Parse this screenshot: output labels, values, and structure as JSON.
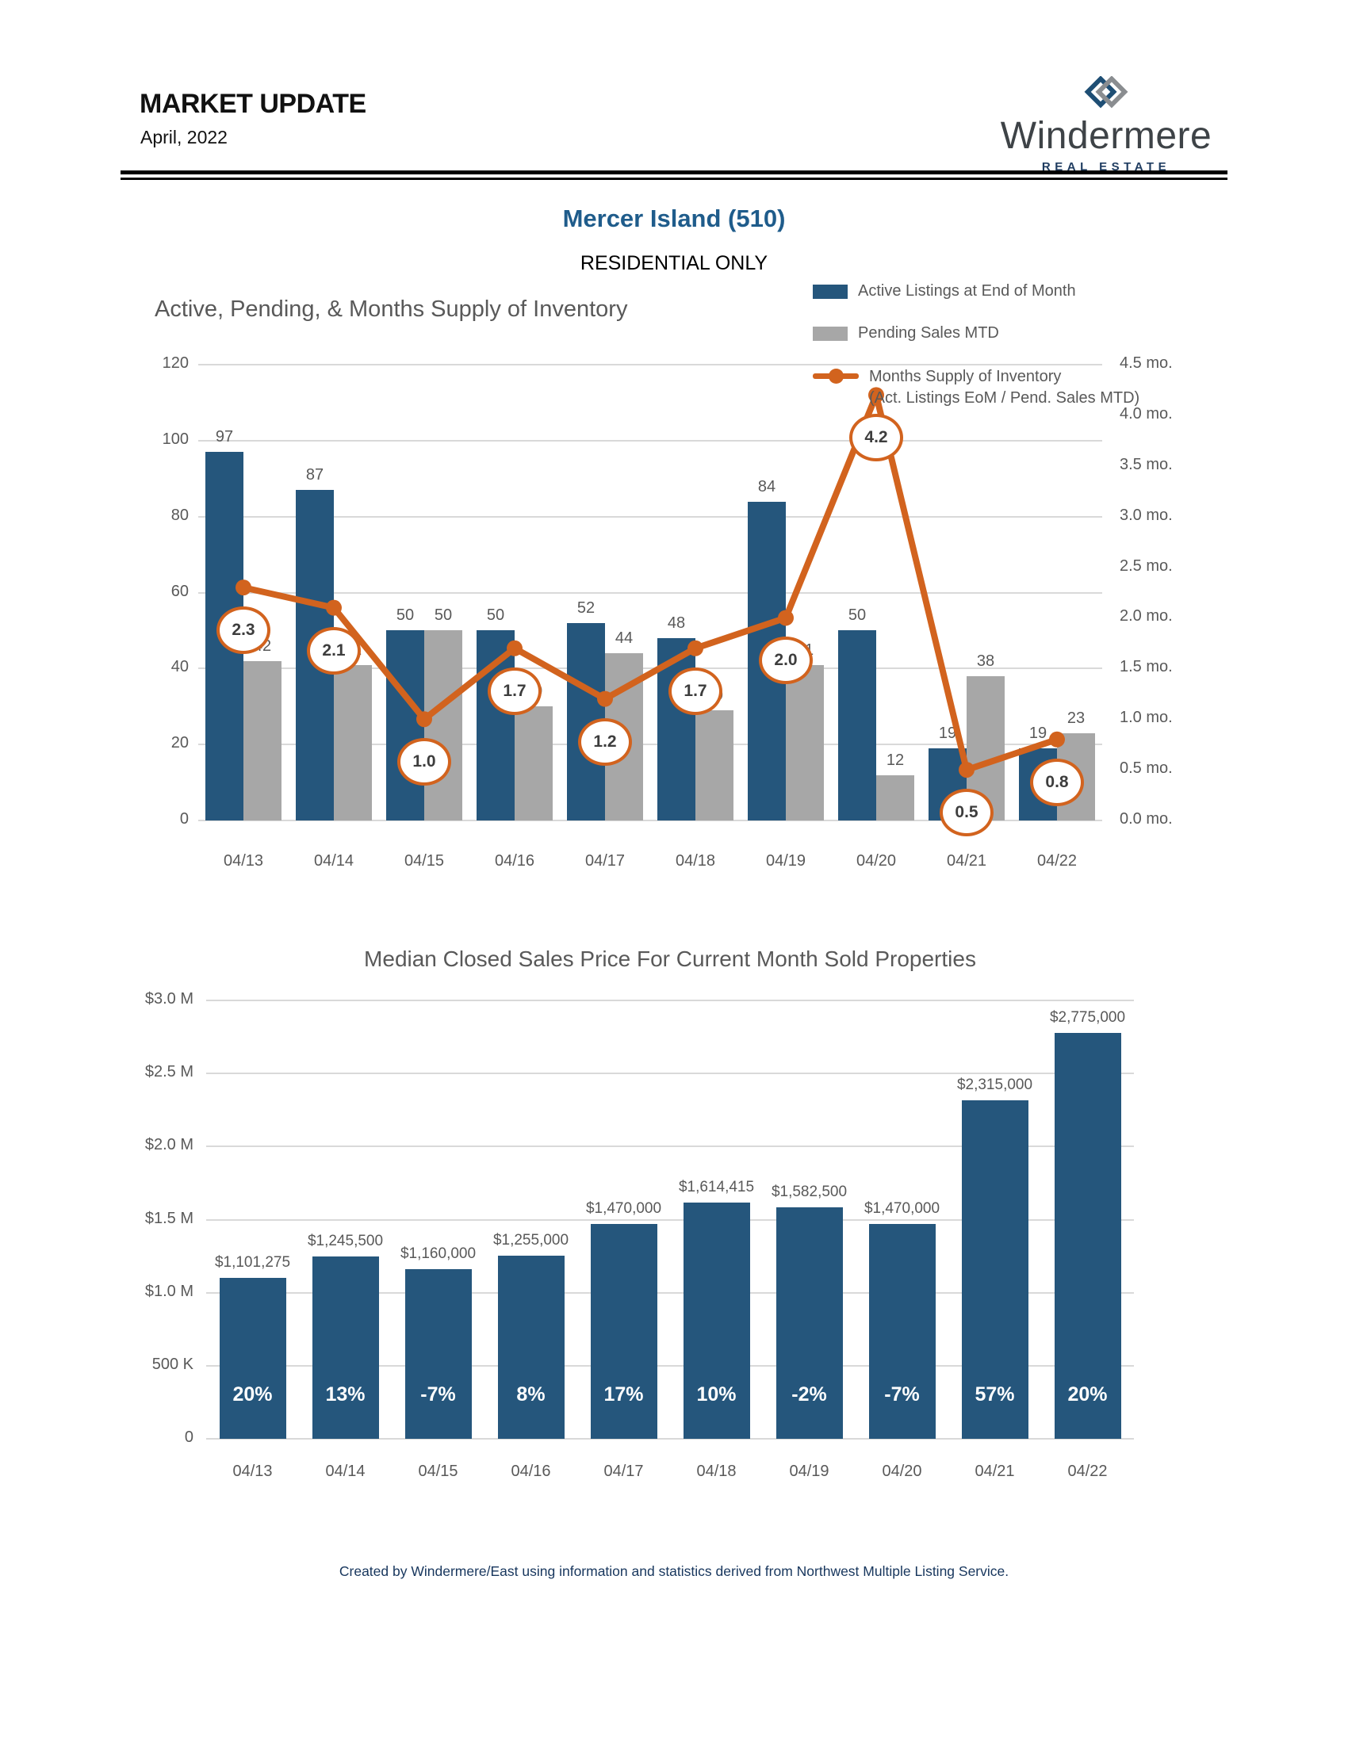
{
  "header": {
    "title": "MARKET UPDATE",
    "subtitle": "April, 2022",
    "logo": {
      "brand": "Windermere",
      "tagline": "REAL ESTATE",
      "icon": "windermere-w-diamond-icon"
    }
  },
  "page": {
    "region_title": "Mercer Island (510)",
    "segment_label": "RESIDENTIAL ONLY",
    "footer": "Created by Windermere/East using information and statistics derived from Northwest Multiple Listing Service."
  },
  "colors": {
    "bar_blue": "#25567C",
    "bar_gray": "#A7A7A7",
    "line_orange": "#D2631E",
    "gridline": "#D9D9D9",
    "axis_text": "#595959",
    "title_blue": "#1F5C8B",
    "footer_navy": "#17365D",
    "logo_navy": "#1E4E74",
    "logo_gray": "#8A8D90"
  },
  "chart_data": [
    {
      "type": "bar",
      "subtype": "combo bar+line, dual axis",
      "title": "Active, Pending, & Months Supply of Inventory",
      "categories": [
        "04/13",
        "04/14",
        "04/15",
        "04/16",
        "04/17",
        "04/18",
        "04/19",
        "04/20",
        "04/21",
        "04/22"
      ],
      "series": [
        {
          "name": "Active Listings at End of Month",
          "type": "bar",
          "color": "#25567C",
          "values": [
            97,
            87,
            50,
            50,
            52,
            48,
            84,
            50,
            19,
            19
          ]
        },
        {
          "name": "Pending Sales MTD",
          "type": "bar",
          "color": "#A7A7A7",
          "values": [
            42,
            41,
            50,
            30,
            44,
            29,
            41,
            12,
            38,
            23
          ]
        },
        {
          "name": "Months Supply of Inventory (Act. Listings EoM / Pend. Sales MTD)",
          "name_line1": "Months Supply of Inventory",
          "name_line2": "(Act. Listings EoM / Pend. Sales MTD)",
          "type": "line",
          "axis": "right",
          "color": "#D2631E",
          "values": [
            2.3,
            2.1,
            1.0,
            1.7,
            1.2,
            1.7,
            2.0,
            4.2,
            0.5,
            0.8
          ],
          "point_labels": [
            "2.3",
            "2.1",
            "1.0",
            "1.7",
            "1.2",
            "1.7",
            "2.0",
            "4.2",
            "0.5",
            "0.8"
          ]
        }
      ],
      "left_axis": {
        "min": 0,
        "max": 120,
        "step": 20,
        "ticks": [
          "120",
          "100",
          "80",
          "60",
          "40",
          "20",
          "0"
        ]
      },
      "right_axis": {
        "min": 0,
        "max": 4.5,
        "step": 0.5,
        "ticks": [
          "4.5 mo.",
          "4.0 mo.",
          "3.5 mo.",
          "3.0 mo.",
          "2.5 mo.",
          "2.0 mo.",
          "1.5 mo.",
          "1.0 mo.",
          "0.5 mo.",
          "0.0 mo."
        ]
      },
      "legend_position": "top-right",
      "grid": true
    },
    {
      "type": "bar",
      "title": "Median Closed Sales Price For Current Month Sold Properties",
      "categories": [
        "04/13",
        "04/14",
        "04/15",
        "04/16",
        "04/17",
        "04/18",
        "04/19",
        "04/20",
        "04/21",
        "04/22"
      ],
      "values": [
        1101275,
        1245500,
        1160000,
        1255000,
        1470000,
        1614415,
        1582500,
        1470000,
        2315000,
        2775000
      ],
      "value_labels": [
        "$1,101,275",
        "$1,245,500",
        "$1,160,000",
        "$1,255,000",
        "$1,470,000",
        "$1,614,415",
        "$1,582,500",
        "$1,470,000",
        "$2,315,000",
        "$2,775,000"
      ],
      "pct_labels": [
        "20%",
        "13%",
        "-7%",
        "8%",
        "17%",
        "10%",
        "-2%",
        "-7%",
        "57%",
        "20%"
      ],
      "bar_color": "#25567C",
      "y_axis": {
        "min": 0,
        "max": 3000000,
        "ticks": [
          "$3.0 M",
          "$2.5 M",
          "$2.0 M",
          "$1.5 M",
          "$1.0 M",
          "500 K",
          "0"
        ]
      },
      "grid": true,
      "legend_position": "none"
    }
  ]
}
